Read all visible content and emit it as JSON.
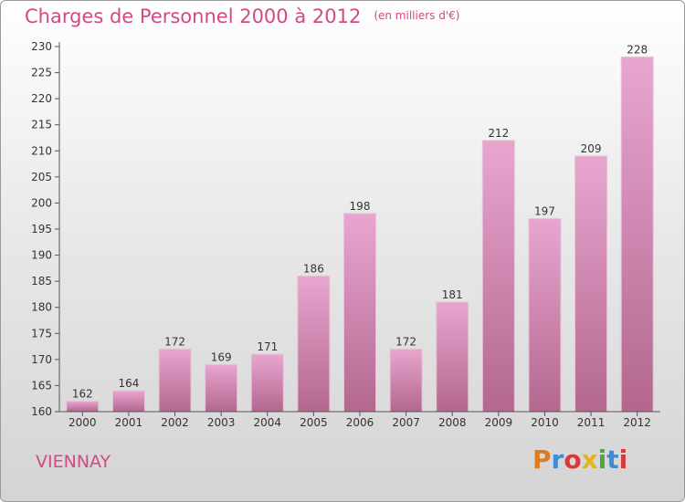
{
  "title": "Charges de Personnel 2000 à 2012",
  "subtitle": "(en milliers d'€)",
  "commune": "VIENNAY",
  "logo": {
    "text": "Proxiti",
    "colors": [
      "#e07a1f",
      "#3a8fd6",
      "#d63a3a",
      "#e3b41f",
      "#4aa83a",
      "#3a8fd6",
      "#d63a3a"
    ]
  },
  "colors": {
    "accent": "#d04a86",
    "bar_top": "#e8a6cf",
    "bar_bottom": "#b3678f"
  },
  "chart_data": {
    "type": "bar",
    "categories": [
      "2000",
      "2001",
      "2002",
      "2003",
      "2004",
      "2005",
      "2006",
      "2007",
      "2008",
      "2009",
      "2010",
      "2011",
      "2012"
    ],
    "values": [
      162,
      164,
      172,
      169,
      171,
      186,
      198,
      172,
      181,
      212,
      197,
      209,
      228
    ],
    "title": "Charges de Personnel 2000 à 2012",
    "ylim": [
      160,
      230
    ],
    "yticks": [
      160,
      165,
      170,
      175,
      180,
      185,
      190,
      195,
      200,
      205,
      210,
      215,
      220,
      225,
      230
    ],
    "grid": false,
    "legend": "none"
  }
}
